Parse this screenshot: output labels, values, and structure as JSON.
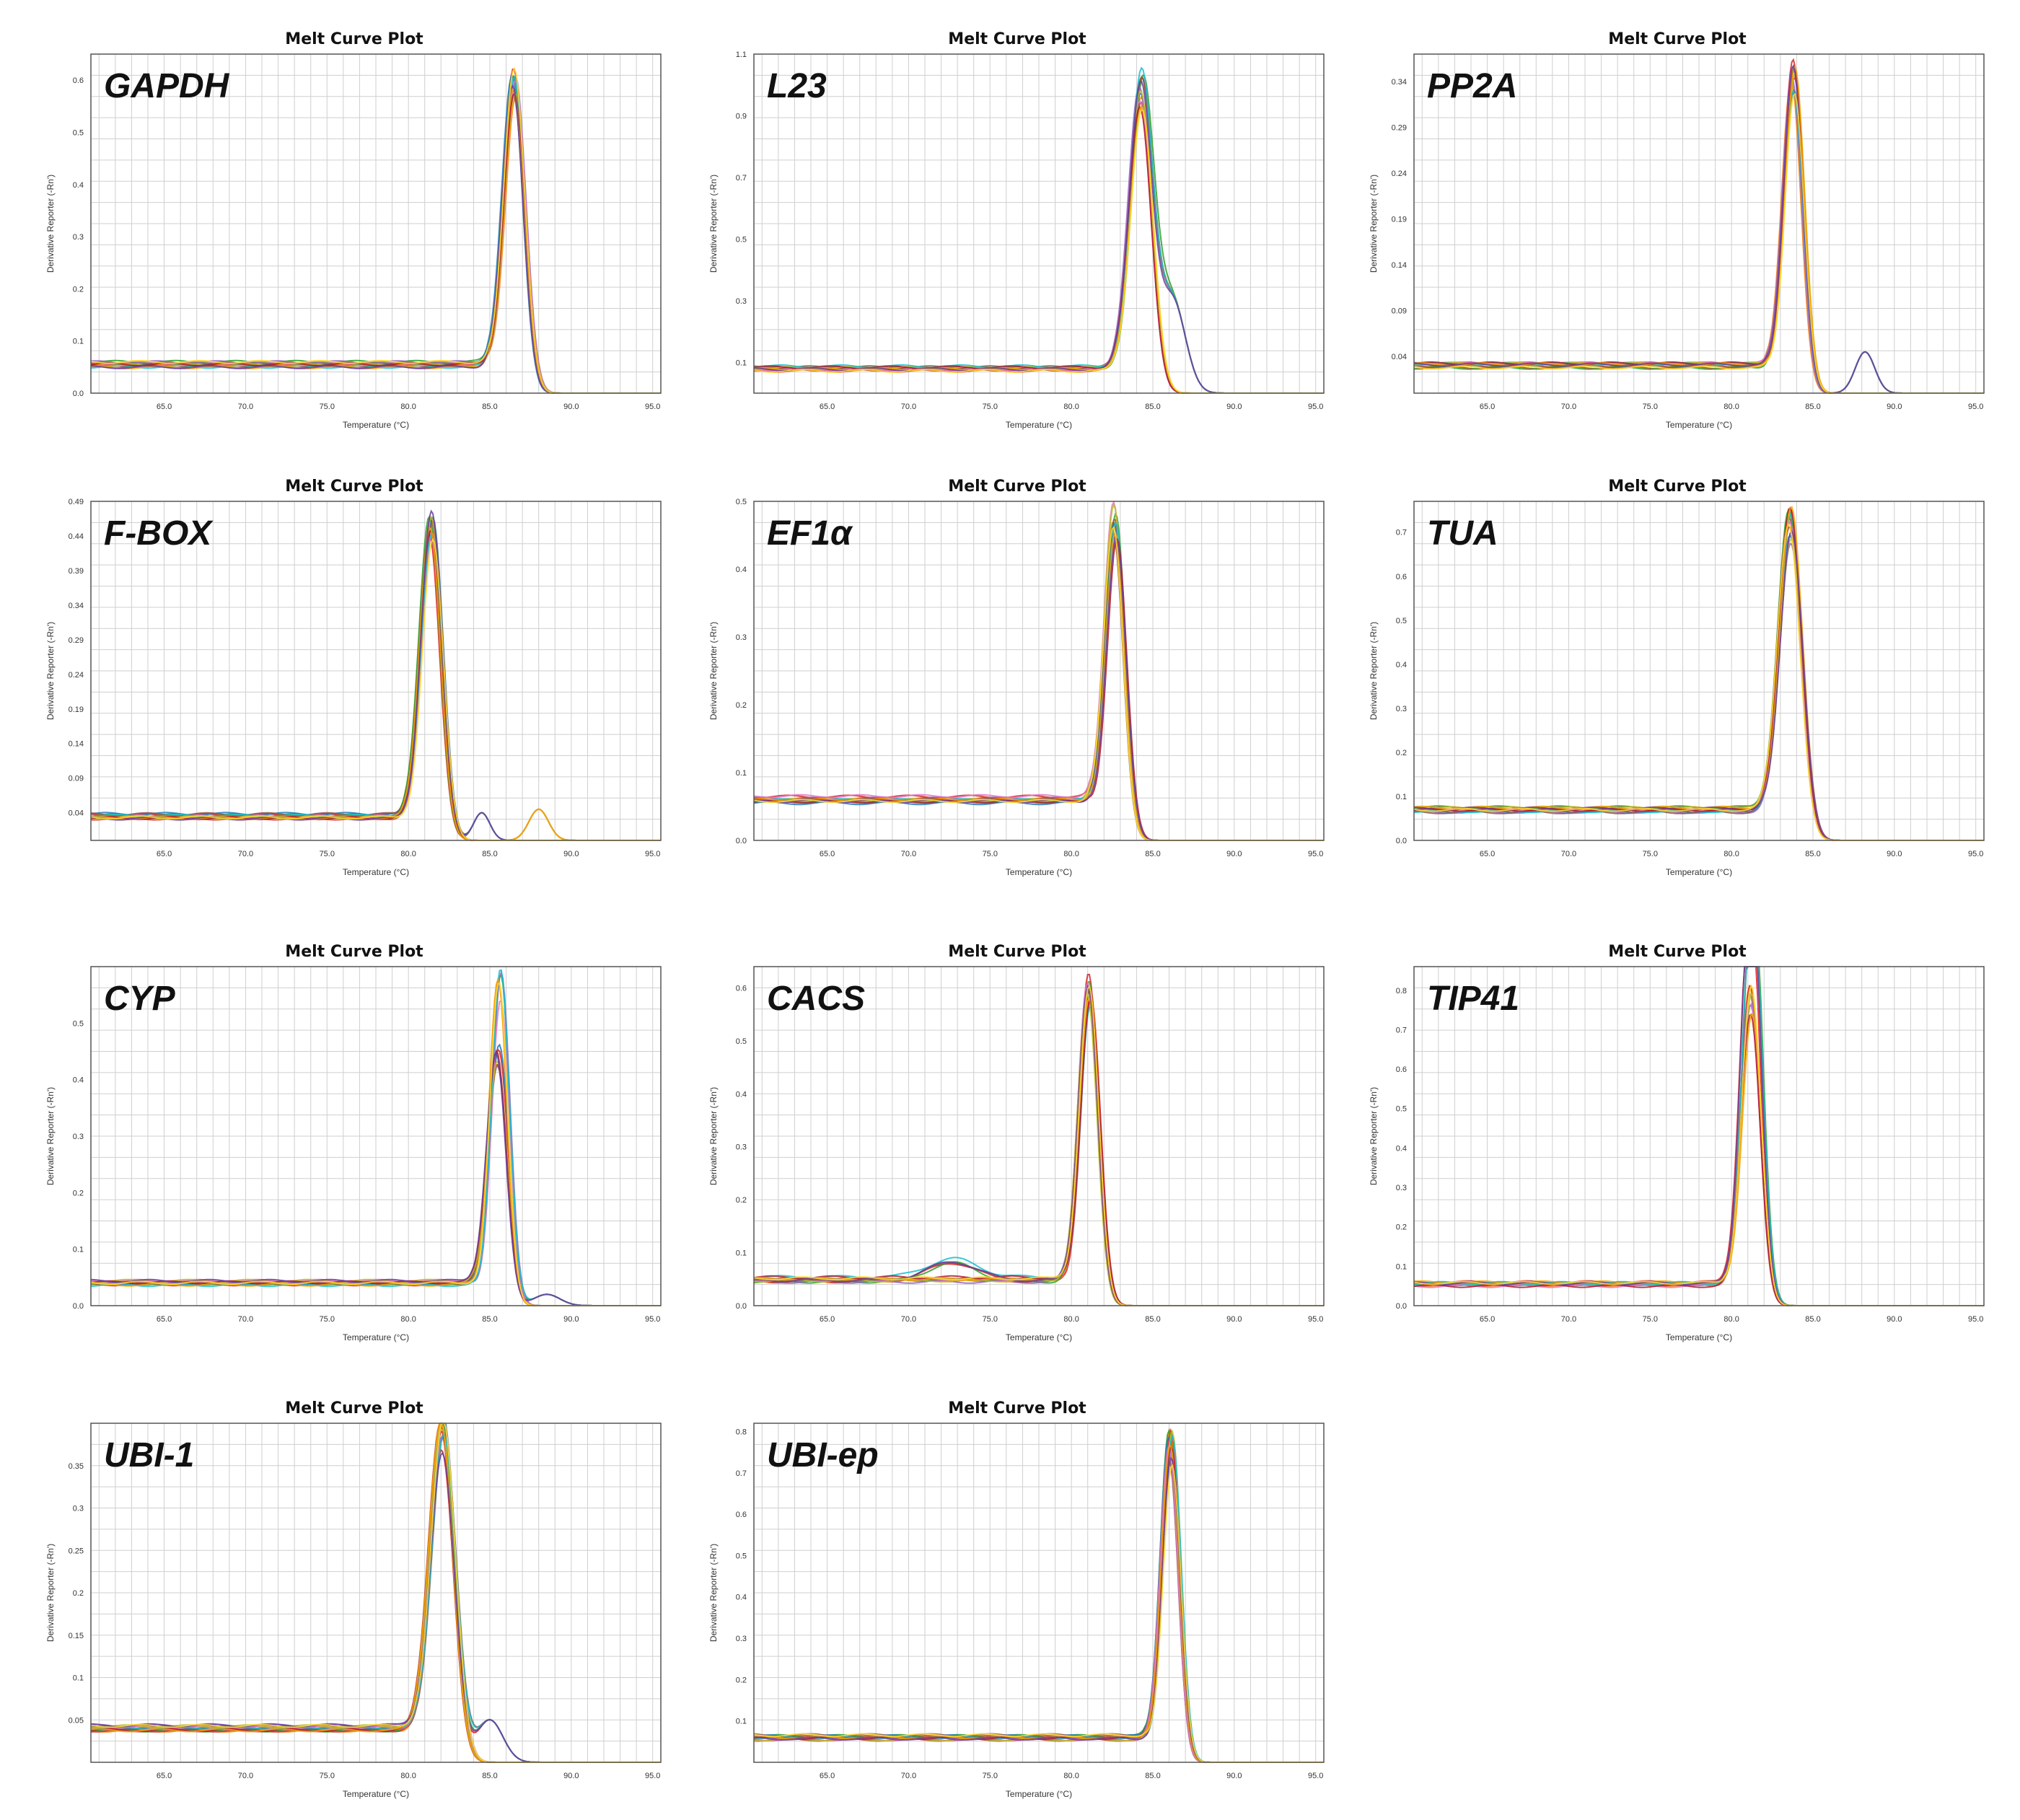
{
  "panel_title": "Melt Curve Plot",
  "x_label": "Temperature (°C)",
  "y_label": "Derivative Reporter (-Rn')",
  "x_ticks": [
    "65.0",
    "70.0",
    "75.0",
    "80.0",
    "85.0",
    "90.0",
    "95.0"
  ],
  "colors": [
    "#e31a1c",
    "#ff7f00",
    "#d62728",
    "#2ca02c",
    "#1f77b4",
    "#9467bd",
    "#8c564b",
    "#e377c2",
    "#bcbd22",
    "#17becf",
    "#b2182b",
    "#f4a300",
    "#6a3d9a",
    "#ffd92f",
    "#7f7f7f"
  ],
  "chart_data": [
    {
      "type": "line",
      "gene": "GAPDH",
      "xlim": [
        60.5,
        95.5
      ],
      "ylim": [
        0,
        0.65
      ],
      "yticks": [
        "0.0",
        "0.1",
        "0.2",
        "0.3",
        "0.4",
        "0.5",
        "0.6"
      ],
      "ytick_values": [
        0,
        0.1,
        0.2,
        0.3,
        0.4,
        0.5,
        0.6
      ],
      "baseline": 0.055,
      "peaks": [
        {
          "x": 86.5,
          "y": 0.6,
          "sigma": 0.65
        }
      ],
      "minor": []
    },
    {
      "type": "line",
      "gene": "L23",
      "xlim": [
        60.5,
        95.5
      ],
      "ylim": [
        0,
        1.1
      ],
      "yticks": [
        "0.1",
        "0.3",
        "0.5",
        "0.7",
        "0.9",
        "1.1"
      ],
      "ytick_values": [
        0.1,
        0.3,
        0.5,
        0.7,
        0.9,
        1.1
      ],
      "baseline": 0.08,
      "peaks": [
        {
          "x": 84.3,
          "y": 1.0,
          "sigma": 0.7
        }
      ],
      "minor": [
        {
          "x": 86.2,
          "y": 0.3,
          "sigma": 0.8
        }
      ]
    },
    {
      "type": "line",
      "gene": "PP2A",
      "xlim": [
        60.5,
        95.5
      ],
      "ylim": [
        0,
        0.37
      ],
      "yticks": [
        "0.04",
        "0.09",
        "0.14",
        "0.19",
        "0.24",
        "0.29",
        "0.34"
      ],
      "ytick_values": [
        0.04,
        0.09,
        0.14,
        0.19,
        0.24,
        0.29,
        0.34
      ],
      "baseline": 0.03,
      "peaks": [
        {
          "x": 83.8,
          "y": 0.35,
          "sigma": 0.6
        }
      ],
      "minor": [
        {
          "x": 88.2,
          "y": 0.045,
          "sigma": 0.6
        }
      ]
    },
    {
      "type": "line",
      "gene": "F-BOX",
      "xlim": [
        60.5,
        95.5
      ],
      "ylim": [
        0,
        0.49
      ],
      "yticks": [
        "0.04",
        "0.09",
        "0.14",
        "0.19",
        "0.24",
        "0.29",
        "0.34",
        "0.39",
        "0.44",
        "0.49"
      ],
      "ytick_values": [
        0.04,
        0.09,
        0.14,
        0.19,
        0.24,
        0.29,
        0.34,
        0.39,
        0.44,
        0.49
      ],
      "baseline": 0.035,
      "peaks": [
        {
          "x": 81.4,
          "y": 0.46,
          "sigma": 0.65
        }
      ],
      "minor": [
        {
          "x": 84.5,
          "y": 0.04,
          "sigma": 0.5
        },
        {
          "x": 88.0,
          "y": 0.045,
          "sigma": 0.6
        }
      ]
    },
    {
      "type": "line",
      "gene": "EF1α",
      "xlim": [
        60.5,
        95.5
      ],
      "ylim": [
        0,
        0.5
      ],
      "yticks": [
        "0.0",
        "0.1",
        "0.2",
        "0.3",
        "0.4",
        "0.5"
      ],
      "ytick_values": [
        0,
        0.1,
        0.2,
        0.3,
        0.4,
        0.5
      ],
      "baseline": 0.06,
      "peaks": [
        {
          "x": 82.7,
          "y": 0.47,
          "sigma": 0.6
        }
      ],
      "minor": []
    },
    {
      "type": "line",
      "gene": "TUA",
      "xlim": [
        60.5,
        95.5
      ],
      "ylim": [
        0,
        0.77
      ],
      "yticks": [
        "0.0",
        "0.1",
        "0.2",
        "0.3",
        "0.4",
        "0.5",
        "0.6",
        "0.7"
      ],
      "ytick_values": [
        0,
        0.1,
        0.2,
        0.3,
        0.4,
        0.5,
        0.6,
        0.7
      ],
      "baseline": 0.07,
      "peaks": [
        {
          "x": 83.6,
          "y": 0.73,
          "sigma": 0.7
        }
      ],
      "minor": []
    },
    {
      "type": "line",
      "gene": "CYP",
      "xlim": [
        60.5,
        95.5
      ],
      "ylim": [
        0,
        0.6
      ],
      "yticks": [
        "0.0",
        "0.1",
        "0.2",
        "0.3",
        "0.4",
        "0.5"
      ],
      "ytick_values": [
        0,
        0.1,
        0.2,
        0.3,
        0.4,
        0.5
      ],
      "baseline": 0.04,
      "peaks": [
        {
          "x": 85.5,
          "y": 0.45,
          "sigma": 0.6
        },
        {
          "x": 85.6,
          "y": 0.58,
          "sigma": 0.55
        }
      ],
      "minor": [
        {
          "x": 88.5,
          "y": 0.02,
          "sigma": 0.8
        }
      ]
    },
    {
      "type": "line",
      "gene": "CACS",
      "xlim": [
        60.5,
        95.5
      ],
      "ylim": [
        0,
        0.64
      ],
      "yticks": [
        "0.0",
        "0.1",
        "0.2",
        "0.3",
        "0.4",
        "0.5",
        "0.6"
      ],
      "ytick_values": [
        0,
        0.1,
        0.2,
        0.3,
        0.4,
        0.5,
        0.6
      ],
      "baseline": 0.05,
      "peaks": [
        {
          "x": 81.1,
          "y": 0.6,
          "sigma": 0.6
        }
      ],
      "minor": [
        {
          "x": 72.7,
          "y": 0.035,
          "sigma": 1.5
        }
      ]
    },
    {
      "type": "line",
      "gene": "TIP41",
      "xlim": [
        60.5,
        95.5
      ],
      "ylim": [
        0,
        0.86
      ],
      "yticks": [
        "0.0",
        "0.1",
        "0.2",
        "0.3",
        "0.4",
        "0.5",
        "0.6",
        "0.7",
        "0.8"
      ],
      "ytick_values": [
        0,
        0.1,
        0.2,
        0.3,
        0.4,
        0.5,
        0.6,
        0.7,
        0.8
      ],
      "baseline": 0.055,
      "peaks": [
        {
          "x": 81.2,
          "y": 0.8,
          "sigma": 0.6
        }
      ],
      "minor": [
        {
          "x": 81.3,
          "y": 0.28,
          "sigma": 0.6
        }
      ]
    },
    {
      "type": "line",
      "gene": "UBI-1",
      "xlim": [
        60.5,
        95.5
      ],
      "ylim": [
        0,
        0.4
      ],
      "yticks": [
        "0.05",
        "0.1",
        "0.15",
        "0.2",
        "0.25",
        "0.3",
        "0.35"
      ],
      "ytick_values": [
        0.05,
        0.1,
        0.15,
        0.2,
        0.25,
        0.3,
        0.35
      ],
      "baseline": 0.04,
      "peaks": [
        {
          "x": 82.1,
          "y": 0.39,
          "sigma": 0.75
        }
      ],
      "minor": [
        {
          "x": 85.0,
          "y": 0.05,
          "sigma": 0.8
        }
      ]
    },
    {
      "type": "line",
      "gene": "UBI-ep",
      "xlim": [
        60.5,
        95.5
      ],
      "ylim": [
        0,
        0.82
      ],
      "yticks": [
        "0.1",
        "0.2",
        "0.3",
        "0.4",
        "0.5",
        "0.6",
        "0.7",
        "0.8"
      ],
      "ytick_values": [
        0.1,
        0.2,
        0.3,
        0.4,
        0.5,
        0.6,
        0.7,
        0.8
      ],
      "baseline": 0.06,
      "peaks": [
        {
          "x": 86.1,
          "y": 0.78,
          "sigma": 0.55
        }
      ],
      "minor": []
    }
  ]
}
